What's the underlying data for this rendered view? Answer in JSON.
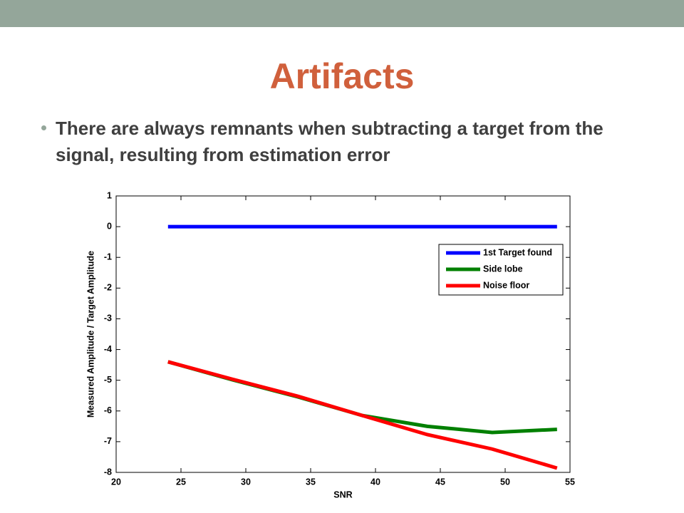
{
  "slide": {
    "title": "Artifacts",
    "bullet": "There are always remnants when subtracting a target from the signal, resulting from estimation error"
  },
  "chart_data": {
    "type": "line",
    "x_label": "SNR",
    "y_label": "Measured Amplitude / Target Amplitude",
    "x": [
      24,
      29,
      34,
      39,
      44,
      49,
      54
    ],
    "series": [
      {
        "name": "1st Target found",
        "color": "#0000ff",
        "values": [
          0,
          0,
          0,
          0,
          0,
          0,
          0
        ]
      },
      {
        "name": "Side lobe",
        "color": "#008000",
        "values": [
          -4.4,
          -4.99,
          -5.54,
          -6.15,
          -6.5,
          -6.7,
          -6.6
        ]
      },
      {
        "name": "Noise floor",
        "color": "#ff0000",
        "values": [
          -4.4,
          -4.97,
          -5.52,
          -6.15,
          -6.77,
          -7.24,
          -7.86
        ]
      }
    ],
    "xlim": [
      20,
      55
    ],
    "xticks": [
      20,
      25,
      30,
      35,
      40,
      45,
      50,
      55
    ],
    "ylim": [
      -8,
      1
    ],
    "yticks": [
      -8,
      -7,
      -6,
      -5,
      -4,
      -3,
      -2,
      -1,
      0,
      1
    ],
    "grid": false,
    "legend": "upper right"
  }
}
